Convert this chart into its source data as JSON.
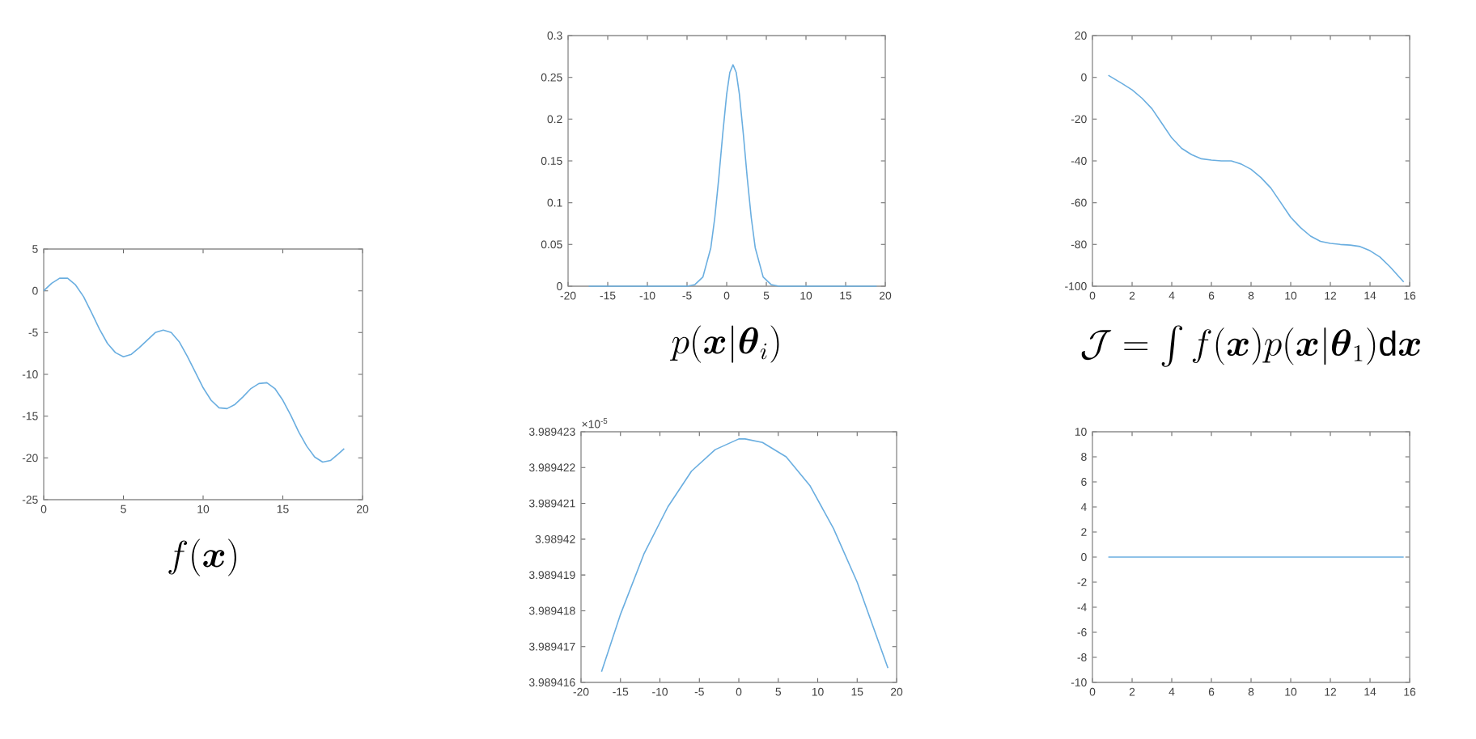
{
  "chart_data": [
    {
      "type": "line",
      "xlabel": "f(\\boldsymbol{x})",
      "color": "#6aaee0",
      "xlim": [
        0,
        20
      ],
      "xticks": [
        0,
        5,
        10,
        15,
        20
      ],
      "ylim": [
        -25,
        5
      ],
      "yticks": [
        -25,
        -20,
        -15,
        -10,
        -5,
        0,
        5
      ],
      "x": [
        0,
        0.5,
        1,
        1.5,
        2,
        2.5,
        3,
        3.5,
        4,
        4.5,
        5,
        5.5,
        6,
        6.5,
        7,
        7.5,
        8,
        8.5,
        9,
        9.5,
        10,
        10.5,
        11,
        11.5,
        12,
        12.5,
        13,
        13.5,
        14,
        14.5,
        15,
        15.5,
        16,
        16.5,
        17,
        17.5,
        18,
        18.5,
        18.85
      ],
      "values": [
        0,
        0.9,
        1.5,
        1.5,
        0.7,
        -0.7,
        -2.6,
        -4.6,
        -6.3,
        -7.4,
        -7.9,
        -7.6,
        -6.8,
        -5.9,
        -5.0,
        -4.7,
        -5.0,
        -6.1,
        -7.8,
        -9.7,
        -11.6,
        -13.1,
        -14.0,
        -14.1,
        -13.6,
        -12.7,
        -11.7,
        -11.1,
        -11.0,
        -11.7,
        -13.1,
        -14.9,
        -16.9,
        -18.6,
        -19.9,
        -20.5,
        -20.3,
        -19.5,
        -18.9
      ]
    },
    {
      "type": "line",
      "xlabel": "p(\\boldsymbol{x}|\\boldsymbol{\\theta}_i)",
      "color": "#6aaee0",
      "xlim": [
        -20,
        20
      ],
      "xticks": [
        -20,
        -15,
        -10,
        -5,
        0,
        5,
        10,
        15,
        20
      ],
      "ylim": [
        0,
        0.3
      ],
      "yticks": [
        0,
        0.05,
        0.1,
        0.15,
        0.2,
        0.25,
        0.3
      ],
      "x": [
        -17.4,
        -10,
        -5,
        -4,
        -3,
        -2,
        -1.5,
        -1,
        -0.5,
        0,
        0.4,
        0.8,
        1.2,
        1.6,
        2.1,
        2.6,
        3.1,
        3.6,
        4.6,
        5.6,
        6.6,
        10,
        18.9
      ],
      "values": [
        0,
        0,
        0,
        0.002,
        0.011,
        0.046,
        0.082,
        0.129,
        0.182,
        0.23,
        0.256,
        0.265,
        0.256,
        0.23,
        0.182,
        0.129,
        0.082,
        0.046,
        0.011,
        0.002,
        0,
        0,
        0
      ]
    },
    {
      "type": "line",
      "xlabel": "\\mathcal{J}=\\int f(\\boldsymbol{x})p(\\boldsymbol{x}|\\boldsymbol{\\theta}_1)\\mathrm{d}\\boldsymbol{x}",
      "color": "#6aaee0",
      "xlim": [
        0,
        16
      ],
      "xticks": [
        0,
        2,
        4,
        6,
        8,
        10,
        12,
        14,
        16
      ],
      "ylim": [
        -100,
        20
      ],
      "yticks": [
        -100,
        -80,
        -60,
        -40,
        -20,
        0,
        20
      ],
      "x": [
        0.8,
        1.5,
        2,
        2.5,
        3,
        3.5,
        4,
        4.5,
        5,
        5.5,
        6,
        6.5,
        7,
        7.5,
        8,
        8.5,
        9,
        9.5,
        10,
        10.5,
        11,
        11.5,
        12,
        12.5,
        13,
        13.5,
        14,
        14.5,
        15,
        15.7
      ],
      "values": [
        1,
        -3,
        -6,
        -10,
        -15,
        -22,
        -29,
        -34,
        -37,
        -39,
        -39.6,
        -40,
        -40,
        -41.5,
        -44,
        -48,
        -53,
        -60,
        -67,
        -72,
        -76,
        -78.5,
        -79.5,
        -80,
        -80.3,
        -81,
        -83,
        -86,
        -90.6,
        -98
      ]
    },
    {
      "type": "line",
      "color": "#6aaee0",
      "annotations": [
        "×10$^{-5}$"
      ],
      "xlim": [
        -20,
        20
      ],
      "xticks": [
        -20,
        -15,
        -10,
        -5,
        0,
        5,
        10,
        15,
        20
      ],
      "ylim": [
        3.989416,
        3.989423
      ],
      "yticks": [
        3.989416,
        3.989417,
        3.989418,
        3.989419,
        3.98942,
        3.989421,
        3.989422,
        3.989423
      ],
      "x": [
        -17.4,
        -15,
        -12,
        -9,
        -6,
        -3,
        0,
        0.8,
        3,
        6,
        9,
        12,
        15,
        18.9
      ],
      "values": [
        3.9894163,
        3.9894179,
        3.9894196,
        3.9894209,
        3.9894219,
        3.9894225,
        3.9894228,
        3.9894228,
        3.9894227,
        3.9894223,
        3.9894215,
        3.9894203,
        3.9894188,
        3.9894164
      ]
    },
    {
      "type": "line",
      "color": "#6aaee0",
      "xlim": [
        0,
        16
      ],
      "xticks": [
        0,
        2,
        4,
        6,
        8,
        10,
        12,
        14,
        16
      ],
      "ylim": [
        -10,
        10
      ],
      "yticks": [
        -10,
        -8,
        -6,
        -4,
        -2,
        0,
        2,
        4,
        6,
        8,
        10
      ],
      "x": [
        0.8,
        15.7
      ],
      "values": [
        0,
        0
      ]
    }
  ]
}
